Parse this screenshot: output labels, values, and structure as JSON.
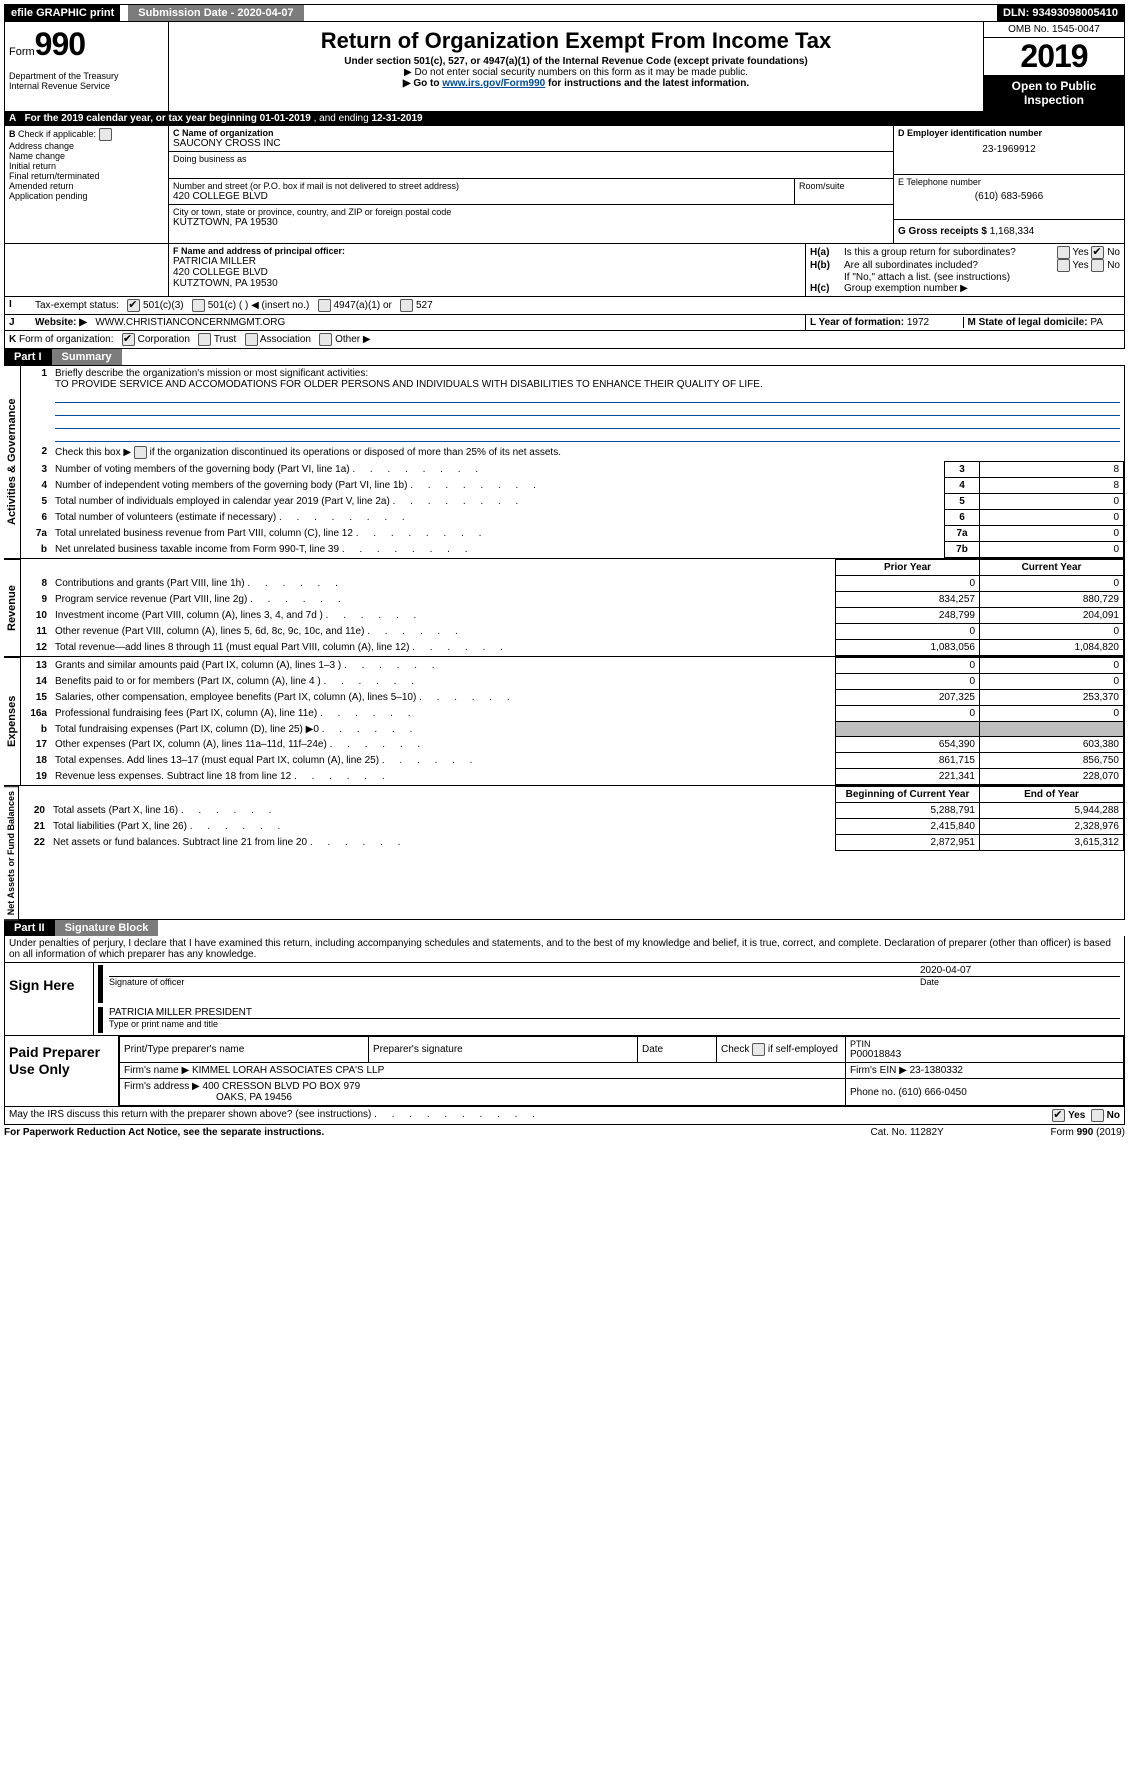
{
  "topbar": {
    "efile": "efile GRAPHIC print",
    "subdate_label": "Submission Date - ",
    "subdate": "2020-04-07",
    "dln_label": "DLN: ",
    "dln": "93493098005410"
  },
  "header": {
    "form_small": "Form",
    "form_big": "990",
    "dept1": "Department of the Treasury",
    "dept2": "Internal Revenue Service",
    "title": "Return of Organization Exempt From Income Tax",
    "sub": "Under section 501(c), 527, or 4947(a)(1) of the Internal Revenue Code (except private foundations)",
    "inst1": "▶ Do not enter social security numbers on this form as it may be made public.",
    "inst2_pre": "▶ Go to ",
    "inst2_link": "www.irs.gov/Form990",
    "inst2_post": " for instructions and the latest information.",
    "omb": "OMB No. 1545-0047",
    "year": "2019",
    "open": "Open to Public Inspection"
  },
  "periodline": {
    "a": "A",
    "text_pre": "For the 2019 calendar year, or tax year beginning ",
    "begin": "01-01-2019",
    "mid": ", and ending ",
    "end": "12-31-2019"
  },
  "boxB": {
    "b": "B",
    "check_label": "Check if applicable:",
    "items": [
      "Address change",
      "Name change",
      "Initial return",
      "Final return/terminated",
      "Amended return",
      "Application pending"
    ]
  },
  "boxC": {
    "c_label": "C Name of organization",
    "name": "SAUCONY CROSS INC",
    "dba_label": "Doing business as",
    "dba": "",
    "addr_label": "Number and street (or P.O. box if mail is not delivered to street address)",
    "addr": "420 COLLEGE BLVD",
    "room_label": "Room/suite",
    "city_label": "City or town, state or province, country, and ZIP or foreign postal code",
    "city": "KUTZTOWN, PA  19530"
  },
  "boxD": {
    "label": "D Employer identification number",
    "val": "23-1969912"
  },
  "boxE": {
    "label": "E Telephone number",
    "val": "(610) 683-5966"
  },
  "boxG": {
    "label": "G Gross receipts $ ",
    "val": "1,168,334"
  },
  "boxF": {
    "label": "F  Name and address of principal officer:",
    "name": "PATRICIA MILLER",
    "addr1": "420 COLLEGE BLVD",
    "addr2": "KUTZTOWN, PA  19530"
  },
  "boxH": {
    "ha": "H(a)",
    "ha_text": "Is this a group return for subordinates?",
    "hb": "H(b)",
    "hb_text": "Are all subordinates included?",
    "hb_note": "If \"No,\" attach a list. (see instructions)",
    "hc": "H(c)",
    "hc_text": "Group exemption number ▶",
    "yes": "Yes",
    "no": "No"
  },
  "rowI": {
    "i": "I",
    "label": "Tax-exempt status:",
    "c3": "501(c)(3)",
    "c": "501(c) (  ) ◀ (insert no.)",
    "a1": "4947(a)(1) or",
    "527": "527"
  },
  "rowJ": {
    "j": "J",
    "label": "Website: ▶",
    "val": "WWW.CHRISTIANCONCERNMGMT.ORG"
  },
  "rowK": {
    "k": "K",
    "label": "Form of organization:",
    "corp": "Corporation",
    "trust": "Trust",
    "assoc": "Association",
    "other": "Other ▶"
  },
  "rowLM": {
    "l_label": "L Year of formation: ",
    "l_val": "1972",
    "m_label": "M State of legal domicile: ",
    "m_val": "PA"
  },
  "part1": {
    "pt": "Part I",
    "title": "Summary",
    "side_act": "Activities & Governance",
    "side_rev": "Revenue",
    "side_exp": "Expenses",
    "side_na": "Net Assets or Fund Balances",
    "l1": "Briefly describe the organization's mission or most significant activities:",
    "l1_text": "TO PROVIDE SERVICE AND ACCOMODATIONS FOR OLDER PERSONS AND INDIVIDUALS WITH DISABILITIES TO ENHANCE THEIR QUALITY OF LIFE.",
    "l2": "Check this box ▶      if the organization discontinued its operations or disposed of more than 25% of its net assets.",
    "prior_hdr": "Prior Year",
    "curr_hdr": "Current Year",
    "boy_hdr": "Beginning of Current Year",
    "eoy_hdr": "End of Year",
    "rows_gov": [
      {
        "n": "3",
        "d": "Number of voting members of the governing body (Part VI, line 1a)",
        "box": "3",
        "v": "8"
      },
      {
        "n": "4",
        "d": "Number of independent voting members of the governing body (Part VI, line 1b)",
        "box": "4",
        "v": "8"
      },
      {
        "n": "5",
        "d": "Total number of individuals employed in calendar year 2019 (Part V, line 2a)",
        "box": "5",
        "v": "0"
      },
      {
        "n": "6",
        "d": "Total number of volunteers (estimate if necessary)",
        "box": "6",
        "v": "0"
      },
      {
        "n": "7a",
        "d": "Total unrelated business revenue from Part VIII, column (C), line 12",
        "box": "7a",
        "v": "0"
      },
      {
        "n": "b",
        "d": "Net unrelated business taxable income from Form 990-T, line 39",
        "box": "7b",
        "v": "0"
      }
    ],
    "rows_rev": [
      {
        "n": "8",
        "d": "Contributions and grants (Part VIII, line 1h)",
        "p": "0",
        "c": "0"
      },
      {
        "n": "9",
        "d": "Program service revenue (Part VIII, line 2g)",
        "p": "834,257",
        "c": "880,729"
      },
      {
        "n": "10",
        "d": "Investment income (Part VIII, column (A), lines 3, 4, and 7d )",
        "p": "248,799",
        "c": "204,091"
      },
      {
        "n": "11",
        "d": "Other revenue (Part VIII, column (A), lines 5, 6d, 8c, 9c, 10c, and 11e)",
        "p": "0",
        "c": "0"
      },
      {
        "n": "12",
        "d": "Total revenue—add lines 8 through 11 (must equal Part VIII, column (A), line 12)",
        "p": "1,083,056",
        "c": "1,084,820"
      }
    ],
    "rows_exp": [
      {
        "n": "13",
        "d": "Grants and similar amounts paid (Part IX, column (A), lines 1–3 )",
        "p": "0",
        "c": "0"
      },
      {
        "n": "14",
        "d": "Benefits paid to or for members (Part IX, column (A), line 4 )",
        "p": "0",
        "c": "0"
      },
      {
        "n": "15",
        "d": "Salaries, other compensation, employee benefits (Part IX, column (A), lines 5–10)",
        "p": "207,325",
        "c": "253,370"
      },
      {
        "n": "16a",
        "d": "Professional fundraising fees (Part IX, column (A), line 11e)",
        "p": "0",
        "c": "0"
      },
      {
        "n": "b",
        "d": "Total fundraising expenses (Part IX, column (D), line 25) ▶0",
        "p": "SHADE",
        "c": "SHADE"
      },
      {
        "n": "17",
        "d": "Other expenses (Part IX, column (A), lines 11a–11d, 11f–24e)",
        "p": "654,390",
        "c": "603,380"
      },
      {
        "n": "18",
        "d": "Total expenses. Add lines 13–17 (must equal Part IX, column (A), line 25)",
        "p": "861,715",
        "c": "856,750"
      },
      {
        "n": "19",
        "d": "Revenue less expenses. Subtract line 18 from line 12",
        "p": "221,341",
        "c": "228,070"
      }
    ],
    "rows_na": [
      {
        "n": "20",
        "d": "Total assets (Part X, line 16)",
        "p": "5,288,791",
        "c": "5,944,288"
      },
      {
        "n": "21",
        "d": "Total liabilities (Part X, line 26)",
        "p": "2,415,840",
        "c": "2,328,976"
      },
      {
        "n": "22",
        "d": "Net assets or fund balances. Subtract line 21 from line 20",
        "p": "2,872,951",
        "c": "3,615,312"
      }
    ]
  },
  "part2": {
    "pt": "Part II",
    "title": "Signature Block",
    "decl": "Under penalties of perjury, I declare that I have examined this return, including accompanying schedules and statements, and to the best of my knowledge and belief, it is true, correct, and complete. Declaration of preparer (other than officer) is based on all information of which preparer has any knowledge."
  },
  "sign": {
    "label": "Sign Here",
    "sig_label": "Signature of officer",
    "date": "2020-04-07",
    "date_label": "Date",
    "name": "PATRICIA MILLER  PRESIDENT",
    "name_label": "Type or print name and title"
  },
  "paid": {
    "label": "Paid Preparer Use Only",
    "col1": "Print/Type preparer's name",
    "col2": "Preparer's signature",
    "col3": "Date",
    "col4_pre": "Check       if self-employed",
    "col5_label": "PTIN",
    "col5_val": "P00018843",
    "firm_label": "Firm's name    ▶ ",
    "firm": "KIMMEL LORAH ASSOCIATES CPA'S LLP",
    "ein_label": "Firm's EIN ▶ ",
    "ein": "23-1380332",
    "addr_label": "Firm's address ▶ ",
    "addr1": "400 CRESSON BLVD PO BOX 979",
    "addr2": "OAKS, PA  19456",
    "phone_label": "Phone no. ",
    "phone": "(610) 666-0450"
  },
  "discuss": {
    "text": "May the IRS discuss this return with the preparer shown above? (see instructions)",
    "yes": "Yes",
    "no": "No"
  },
  "footer": {
    "pra": "For Paperwork Reduction Act Notice, see the separate instructions.",
    "cat": "Cat. No. 11282Y",
    "form_pre": "Form ",
    "form": "990",
    "form_post": " (2019)"
  }
}
